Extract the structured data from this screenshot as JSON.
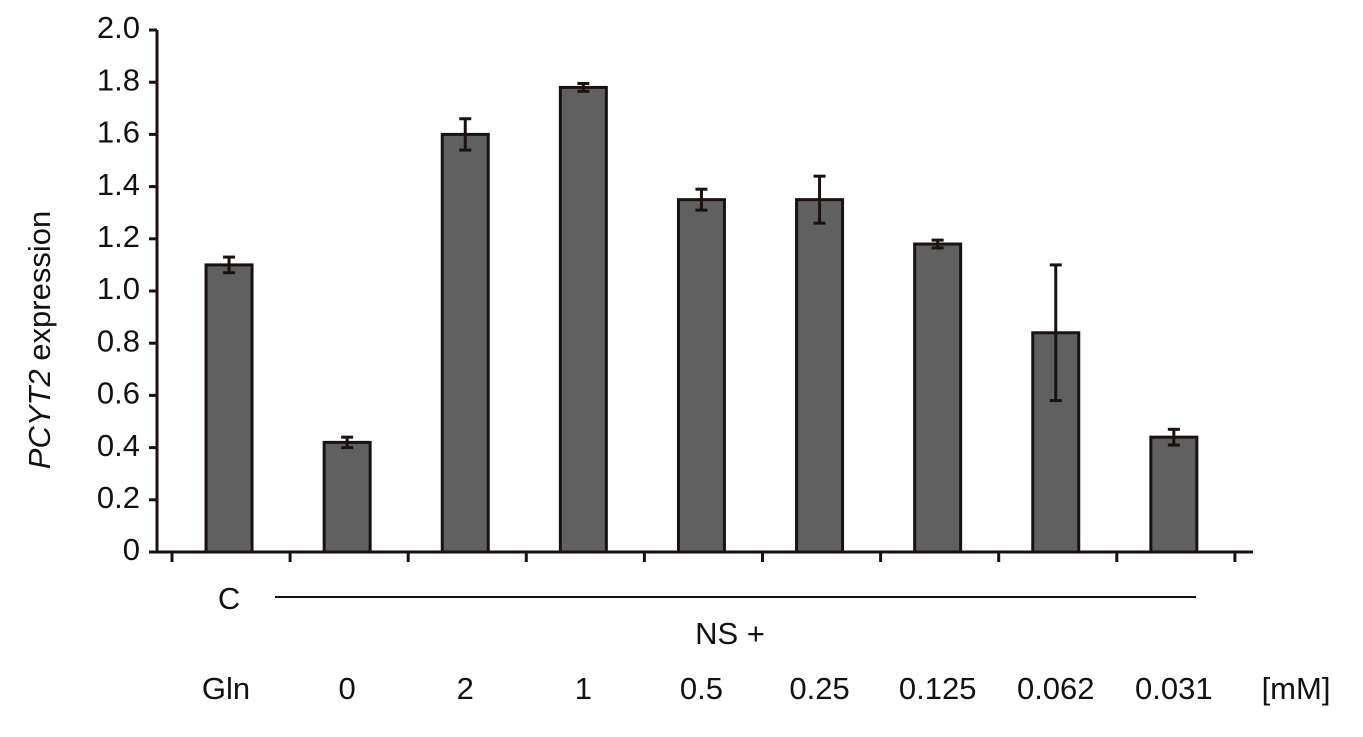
{
  "chart_data": {
    "type": "bar",
    "ylabel_gene": "PCYT2",
    "ylabel": "expression",
    "categories": [
      "C",
      "0",
      "2",
      "1",
      "0.5",
      "0.25",
      "0.125",
      "0.062",
      "0.031"
    ],
    "values": [
      1.1,
      0.42,
      1.6,
      1.78,
      1.35,
      1.35,
      1.18,
      0.84,
      0.44
    ],
    "errors": [
      0.03,
      0.02,
      0.06,
      0.015,
      0.04,
      0.09,
      0.015,
      0.26,
      0.03
    ],
    "color": "#606060",
    "row_label": "Gln",
    "group_label": "NS +",
    "unit_label": "[mM]",
    "ylim": [
      0,
      2.0
    ],
    "yticks": [
      0,
      0.2,
      0.4,
      0.6,
      0.8,
      {
        "value": 1.0,
        "label": "1.0"
      },
      1.2,
      1.4,
      1.6,
      1.8,
      {
        "value": 2.0,
        "label": "2.0"
      }
    ]
  }
}
